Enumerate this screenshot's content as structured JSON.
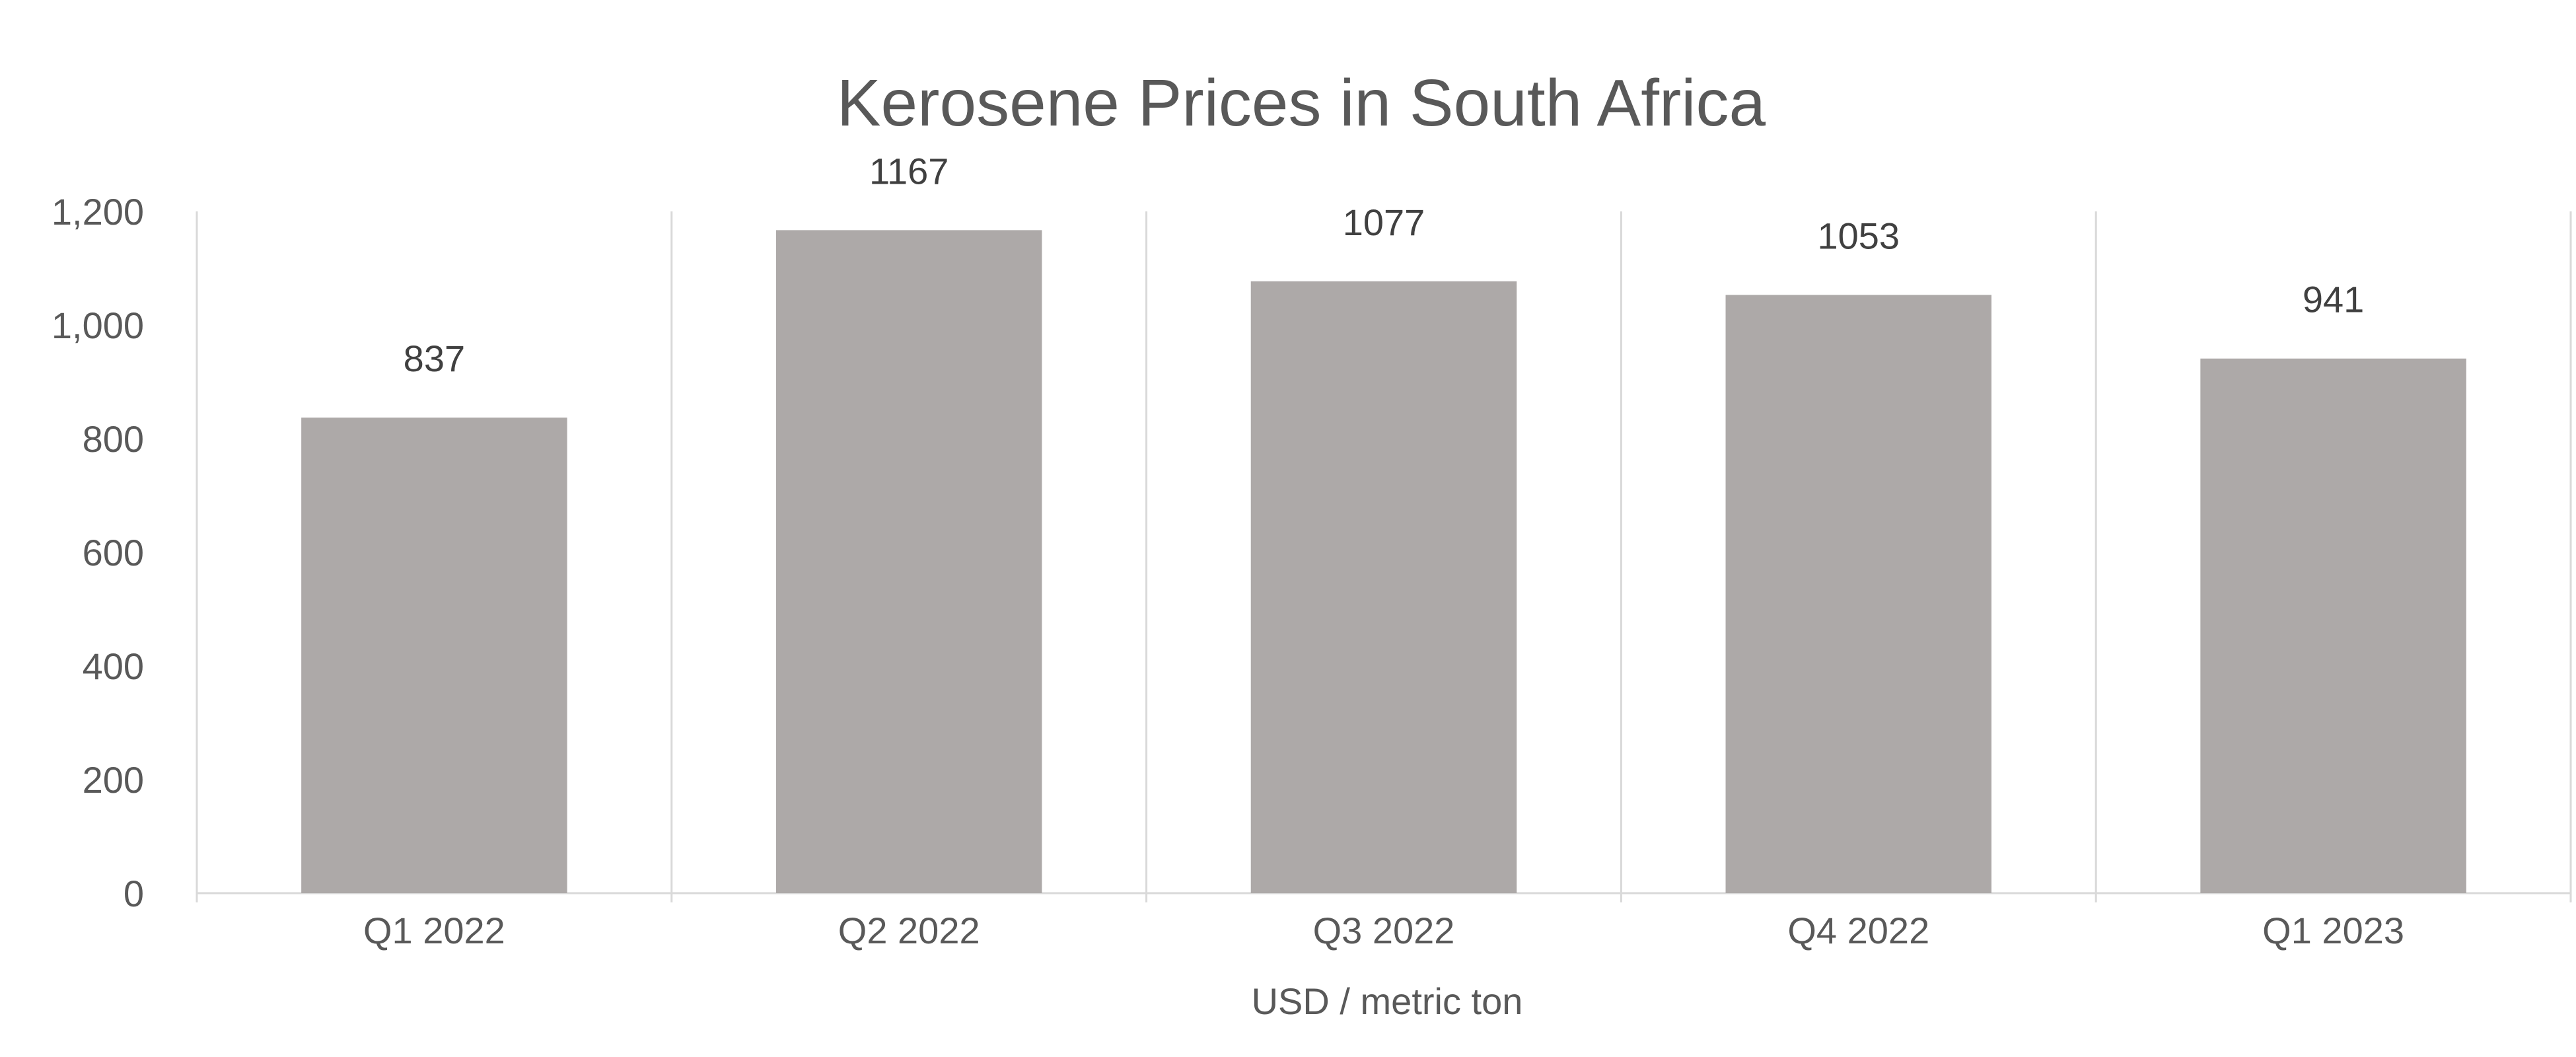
{
  "chart_data": {
    "type": "bar",
    "title": "Kerosene Prices in South Africa",
    "xlabel": "USD / metric ton",
    "ylabel": "",
    "categories": [
      "Q1 2022",
      "Q2 2022",
      "Q3 2022",
      "Q4 2022",
      "Q1 2023"
    ],
    "values": [
      837,
      1167,
      1077,
      1053,
      941
    ],
    "data_labels": [
      "837",
      "1167",
      "1077",
      "1053",
      "941"
    ],
    "ylim": [
      0,
      1200
    ],
    "y_ticks": [
      0,
      200,
      400,
      600,
      800,
      1000,
      1200
    ],
    "y_tick_labels": [
      "0",
      "200",
      "400",
      "600",
      "800",
      "1,000",
      "1,200"
    ],
    "grid": "vertical category separators",
    "legend": "none",
    "colors": {
      "bar": "#ADA9A8",
      "grid": "#D9D9D9",
      "text": "#595959",
      "label": "#404040"
    }
  }
}
